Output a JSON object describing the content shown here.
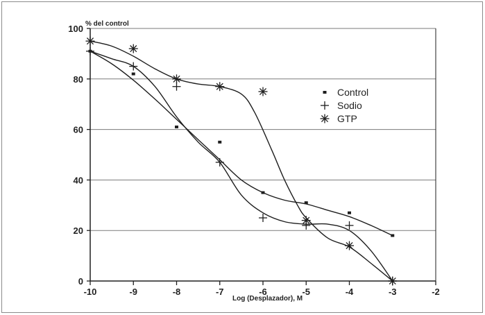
{
  "chart_data": {
    "type": "line",
    "title": "",
    "ylabel": "% del control",
    "xlabel": "Log (Desplazador), M",
    "xlim": [
      -10,
      -2
    ],
    "ylim": [
      0,
      100
    ],
    "xticks": [
      -10,
      -9,
      -8,
      -7,
      -6,
      -5,
      -4,
      -3,
      -2
    ],
    "yticks": [
      0,
      20,
      40,
      60,
      80,
      100
    ],
    "grid": "horizontal",
    "legend_position": "right",
    "series": [
      {
        "name": "Control",
        "marker": "square",
        "points": [
          [
            -10,
            91
          ],
          [
            -9,
            82
          ],
          [
            -8,
            61
          ],
          [
            -7,
            55
          ],
          [
            -6,
            35
          ],
          [
            -5,
            31
          ],
          [
            -4,
            27
          ],
          [
            -3,
            18
          ]
        ],
        "curve": [
          [
            -10,
            91
          ],
          [
            -9.5,
            86
          ],
          [
            -9,
            79.5
          ],
          [
            -8.5,
            72
          ],
          [
            -8,
            64
          ],
          [
            -7.5,
            56
          ],
          [
            -7,
            48
          ],
          [
            -6.5,
            40
          ],
          [
            -6,
            35
          ],
          [
            -5.5,
            32
          ],
          [
            -5,
            30.5
          ],
          [
            -4.5,
            28
          ],
          [
            -4,
            25.5
          ],
          [
            -3.5,
            22
          ],
          [
            -3,
            18
          ]
        ]
      },
      {
        "name": "Sodio",
        "marker": "plus",
        "points": [
          [
            -10,
            91
          ],
          [
            -9,
            85
          ],
          [
            -8,
            77
          ],
          [
            -7,
            47
          ],
          [
            -6,
            25
          ],
          [
            -5,
            22
          ],
          [
            -4,
            22
          ],
          [
            -3,
            0
          ]
        ],
        "curve": [
          [
            -10,
            91
          ],
          [
            -9.5,
            88
          ],
          [
            -9,
            85
          ],
          [
            -8.5,
            77
          ],
          [
            -8,
            65
          ],
          [
            -7.5,
            55
          ],
          [
            -7,
            47
          ],
          [
            -6.5,
            34
          ],
          [
            -6,
            27
          ],
          [
            -5.5,
            23.5
          ],
          [
            -5,
            22.5
          ],
          [
            -4.5,
            22.5
          ],
          [
            -4,
            20
          ],
          [
            -3.5,
            12
          ],
          [
            -3,
            0
          ]
        ]
      },
      {
        "name": "GTP",
        "marker": "asterisk",
        "points": [
          [
            -10,
            95
          ],
          [
            -9,
            92
          ],
          [
            -8,
            80
          ],
          [
            -7,
            77
          ],
          [
            -6,
            75
          ],
          [
            -5,
            24
          ],
          [
            -4,
            14
          ],
          [
            -3,
            0
          ]
        ],
        "curve": [
          [
            -10,
            95
          ],
          [
            -9.5,
            93
          ],
          [
            -9,
            89
          ],
          [
            -8.5,
            84
          ],
          [
            -8,
            80
          ],
          [
            -7.5,
            78
          ],
          [
            -7,
            77
          ],
          [
            -6.5,
            74
          ],
          [
            -6.2,
            67
          ],
          [
            -5.8,
            52
          ],
          [
            -5.5,
            40
          ],
          [
            -5.2,
            30
          ],
          [
            -5,
            25
          ],
          [
            -4.5,
            17
          ],
          [
            -4,
            13.5
          ],
          [
            -3.5,
            7
          ],
          [
            -3,
            0
          ]
        ]
      }
    ]
  },
  "colors": {
    "ink": "#1e1e1e",
    "grid": "#7a7a7a"
  }
}
